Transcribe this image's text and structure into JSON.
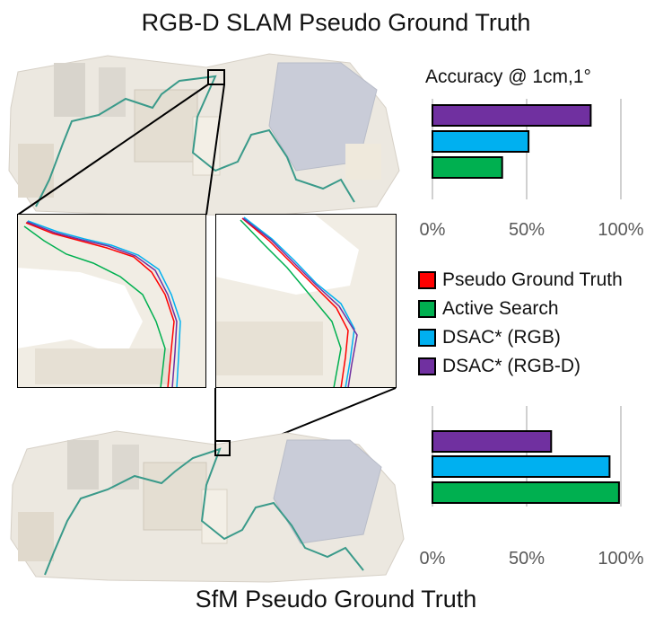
{
  "titles": {
    "top": "RGB-D SLAM Pseudo Ground Truth",
    "bottom": "SfM Pseudo Ground Truth"
  },
  "legend": [
    {
      "label": "Pseudo Ground Truth",
      "color": "#ff0000"
    },
    {
      "label": "Active Search",
      "color": "#00b050"
    },
    {
      "label": "DSAC* (RGB)",
      "color": "#00b0f0"
    },
    {
      "label": "DSAC* (RGB-D)",
      "color": "#7030a0"
    }
  ],
  "chart_data": [
    {
      "type": "bar",
      "orientation": "horizontal",
      "title": "Accuracy @ 1cm,1°",
      "categories": [
        "DSAC* (RGB-D)",
        "DSAC* (RGB)",
        "Active Search"
      ],
      "values": [
        84,
        51,
        37
      ],
      "colors": [
        "#7030a0",
        "#00b0f0",
        "#00b050"
      ],
      "xlim": [
        0,
        100
      ],
      "ticks": [
        "0%",
        "50%",
        "100%"
      ],
      "grid": true
    },
    {
      "type": "bar",
      "orientation": "horizontal",
      "title": "",
      "categories": [
        "DSAC* (RGB-D)",
        "DSAC* (RGB)",
        "Active Search"
      ],
      "values": [
        63,
        94,
        99
      ],
      "colors": [
        "#7030a0",
        "#00b0f0",
        "#00b050"
      ],
      "xlim": [
        0,
        100
      ],
      "ticks": [
        "0%",
        "50%",
        "100%"
      ],
      "grid": true
    }
  ]
}
